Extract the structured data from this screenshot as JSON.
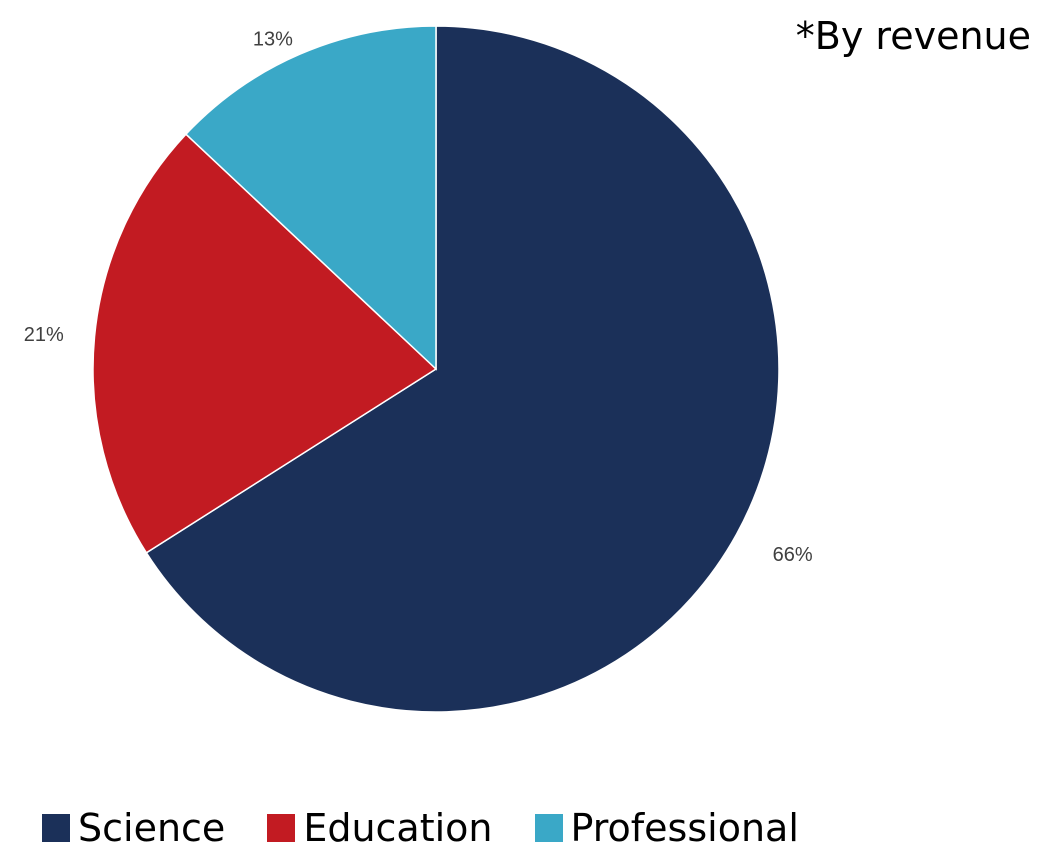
{
  "note": "*By revenue",
  "colors": {
    "Science": "#1b3059",
    "Education": "#c21b22",
    "Professional": "#3aa8c7"
  },
  "chart_data": {
    "type": "pie",
    "categories": [
      "Science",
      "Education",
      "Professional"
    ],
    "values": [
      66,
      21,
      13
    ],
    "labels": [
      "66%",
      "21%",
      "13%"
    ],
    "start_angle": "12 o'clock",
    "direction": "clockwise",
    "legend_position": "bottom",
    "legend": [
      "Science",
      "Education",
      "Professional"
    ]
  }
}
